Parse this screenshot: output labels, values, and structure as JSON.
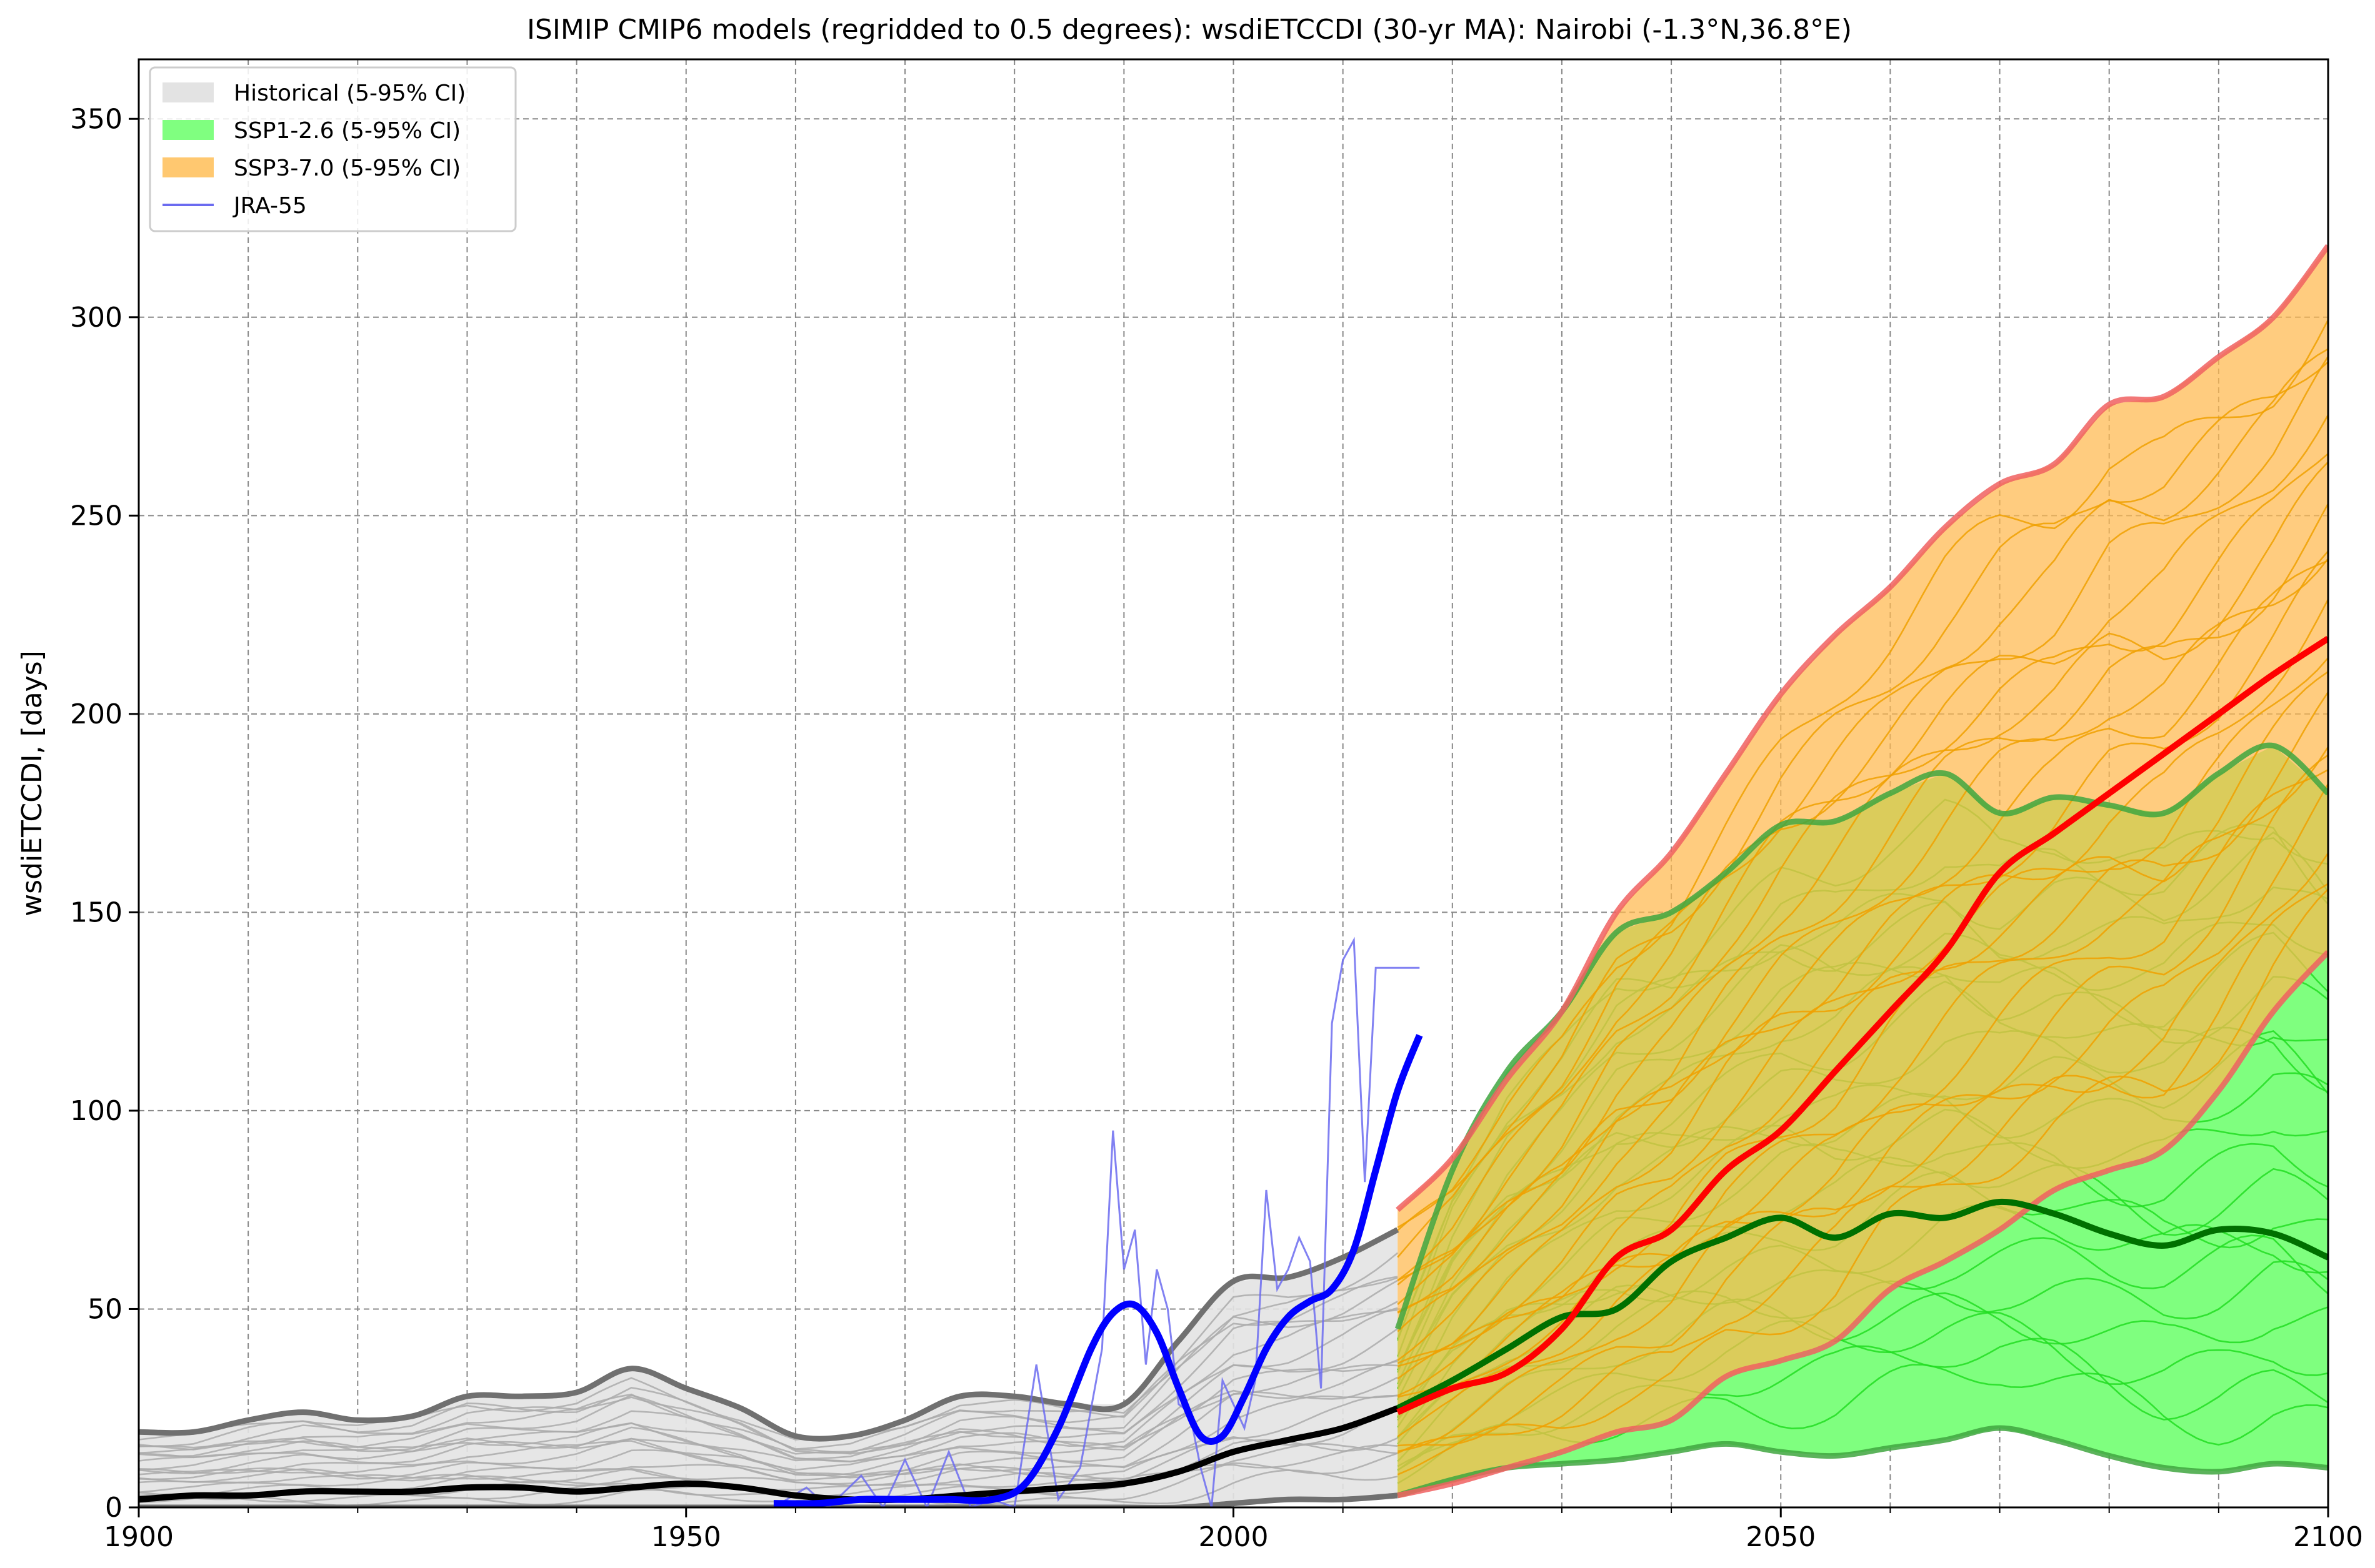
{
  "chart_data": {
    "type": "line",
    "title": "ISIMIP CMIP6 models (regridded to 0.5 degrees): wsdiETCCDI (30-yr MA): Nairobi (-1.3°N,36.8°E)",
    "xlabel": "",
    "ylabel": "wsdiETCCDI, [days]",
    "xlim": [
      1900,
      2100
    ],
    "ylim": [
      0,
      365
    ],
    "xticks": [
      1900,
      1950,
      2000,
      2050,
      2100
    ],
    "yticks": [
      0,
      50,
      100,
      150,
      200,
      250,
      300,
      350
    ],
    "grid": true,
    "legend": {
      "position": "top-left",
      "entries": [
        {
          "label": "Historical (5-95% CI)",
          "kind": "patch",
          "color": "#e3e3e3"
        },
        {
          "label": "SSP1-2.6 (5-95% CI)",
          "kind": "patch",
          "color": "#80ff80"
        },
        {
          "label": "SSP3-7.0 (5-95% CI)",
          "kind": "patch",
          "color": "#ffc870"
        },
        {
          "label": "JRA-55",
          "kind": "line",
          "color": "#6b6bf0"
        }
      ]
    },
    "colors": {
      "historical_fill": "#e3e3e3",
      "historical_bound": "#707070",
      "historical_member": "#aaaaaa",
      "historical_median": "#000000",
      "ssp126_fill": "#7fff7f",
      "ssp126_bound": "#3fa63f",
      "ssp126_member": "#22dd22",
      "ssp126_median": "#007000",
      "ssp370_fill": "#ffb84d",
      "ssp370_bound": "#f06060",
      "ssp370_member": "#f0a000",
      "ssp370_median": "#ff0000",
      "jra55_raw": "#6b6bf0",
      "jra55_smooth": "#0000ff"
    },
    "series": [
      {
        "name": "Historical (5-95% CI)",
        "kind": "band",
        "x": [
          1900,
          1905,
          1910,
          1915,
          1920,
          1925,
          1930,
          1935,
          1940,
          1945,
          1950,
          1955,
          1960,
          1965,
          1970,
          1975,
          1980,
          1985,
          1990,
          1995,
          2000,
          2005,
          2010,
          2015
        ],
        "lower": [
          0,
          0,
          0,
          0,
          0,
          0,
          0,
          0,
          0,
          0,
          0,
          0,
          0,
          0,
          0,
          0,
          0,
          0,
          0,
          0,
          1,
          2,
          2,
          3
        ],
        "upper": [
          19,
          19,
          22,
          24,
          22,
          23,
          28,
          28,
          29,
          35,
          30,
          25,
          18,
          18,
          22,
          28,
          28,
          26,
          26,
          42,
          57,
          58,
          63,
          70
        ]
      },
      {
        "name": "Historical median",
        "kind": "line",
        "x": [
          1900,
          1905,
          1910,
          1915,
          1920,
          1925,
          1930,
          1935,
          1940,
          1945,
          1950,
          1955,
          1960,
          1965,
          1970,
          1975,
          1980,
          1985,
          1990,
          1995,
          2000,
          2005,
          2010,
          2015
        ],
        "values": [
          2,
          3,
          3,
          4,
          4,
          4,
          5,
          5,
          4,
          5,
          6,
          5,
          3,
          2,
          2,
          3,
          4,
          5,
          6,
          9,
          14,
          17,
          20,
          25
        ]
      },
      {
        "name": "SSP1-2.6 (5-95% CI)",
        "kind": "band",
        "x": [
          2015,
          2020,
          2025,
          2030,
          2035,
          2040,
          2045,
          2050,
          2055,
          2060,
          2065,
          2070,
          2075,
          2080,
          2085,
          2090,
          2095,
          2100
        ],
        "lower": [
          3,
          7,
          10,
          11,
          12,
          14,
          16,
          14,
          13,
          15,
          17,
          20,
          17,
          13,
          10,
          9,
          11,
          10
        ],
        "upper": [
          45,
          85,
          110,
          125,
          145,
          150,
          160,
          172,
          173,
          180,
          185,
          175,
          179,
          177,
          175,
          185,
          192,
          180
        ]
      },
      {
        "name": "SSP1-2.6 median",
        "kind": "line",
        "x": [
          2015,
          2020,
          2025,
          2030,
          2035,
          2040,
          2045,
          2050,
          2055,
          2060,
          2065,
          2070,
          2075,
          2080,
          2085,
          2090,
          2095,
          2100
        ],
        "values": [
          25,
          32,
          40,
          48,
          50,
          62,
          68,
          73,
          68,
          74,
          73,
          77,
          74,
          69,
          66,
          70,
          69,
          63
        ]
      },
      {
        "name": "SSP3-7.0 (5-95% CI)",
        "kind": "band",
        "x": [
          2015,
          2020,
          2025,
          2030,
          2035,
          2040,
          2045,
          2050,
          2055,
          2060,
          2065,
          2070,
          2075,
          2080,
          2085,
          2090,
          2095,
          2100
        ],
        "lower": [
          3,
          6,
          10,
          14,
          19,
          22,
          33,
          37,
          42,
          55,
          62,
          70,
          80,
          85,
          90,
          105,
          125,
          140
        ],
        "upper": [
          75,
          88,
          108,
          125,
          150,
          165,
          185,
          205,
          220,
          232,
          247,
          258,
          263,
          278,
          280,
          290,
          300,
          318
        ]
      },
      {
        "name": "SSP3-7.0 median",
        "kind": "line",
        "x": [
          2015,
          2020,
          2025,
          2030,
          2035,
          2040,
          2045,
          2050,
          2055,
          2060,
          2065,
          2070,
          2075,
          2080,
          2085,
          2090,
          2095,
          2100
        ],
        "values": [
          24,
          30,
          34,
          45,
          63,
          70,
          85,
          95,
          110,
          125,
          140,
          160,
          170,
          180,
          190,
          200,
          210,
          219
        ]
      },
      {
        "name": "JRA-55",
        "kind": "line",
        "x": [
          1958,
          1961,
          1963,
          1966,
          1968,
          1970,
          1972,
          1974,
          1976,
          1978,
          1980,
          1982,
          1984,
          1986,
          1988,
          1989,
          1990,
          1991,
          1992,
          1993,
          1994,
          1995,
          1996,
          1997,
          1998,
          1999,
          2000,
          2001,
          2002,
          2003,
          2004,
          2005,
          2006,
          2007,
          2008,
          2009,
          2010,
          2011,
          2012,
          2013,
          2014,
          2015,
          2016,
          2017
        ],
        "values": [
          0,
          5,
          0,
          8,
          0,
          12,
          0,
          14,
          0,
          2,
          0,
          36,
          2,
          10,
          40,
          95,
          60,
          70,
          36,
          60,
          50,
          26,
          24,
          10,
          0,
          32,
          26,
          20,
          32,
          80,
          55,
          60,
          68,
          62,
          30,
          122,
          138,
          143,
          82,
          136,
          136,
          136,
          136,
          136
        ]
      },
      {
        "name": "JRA-55 smoothed",
        "kind": "line",
        "x": [
          1958,
          1962,
          1966,
          1970,
          1974,
          1978,
          1981,
          1984,
          1987,
          1989,
          1991,
          1993,
          1995,
          1997,
          1999,
          2001,
          2003,
          2005,
          2007,
          2009,
          2011,
          2013,
          2015,
          2017
        ],
        "values": [
          1,
          1,
          2,
          2,
          2,
          2,
          6,
          20,
          40,
          49,
          51,
          44,
          30,
          18,
          18,
          28,
          40,
          48,
          52,
          55,
          65,
          85,
          105,
          119
        ]
      }
    ]
  }
}
